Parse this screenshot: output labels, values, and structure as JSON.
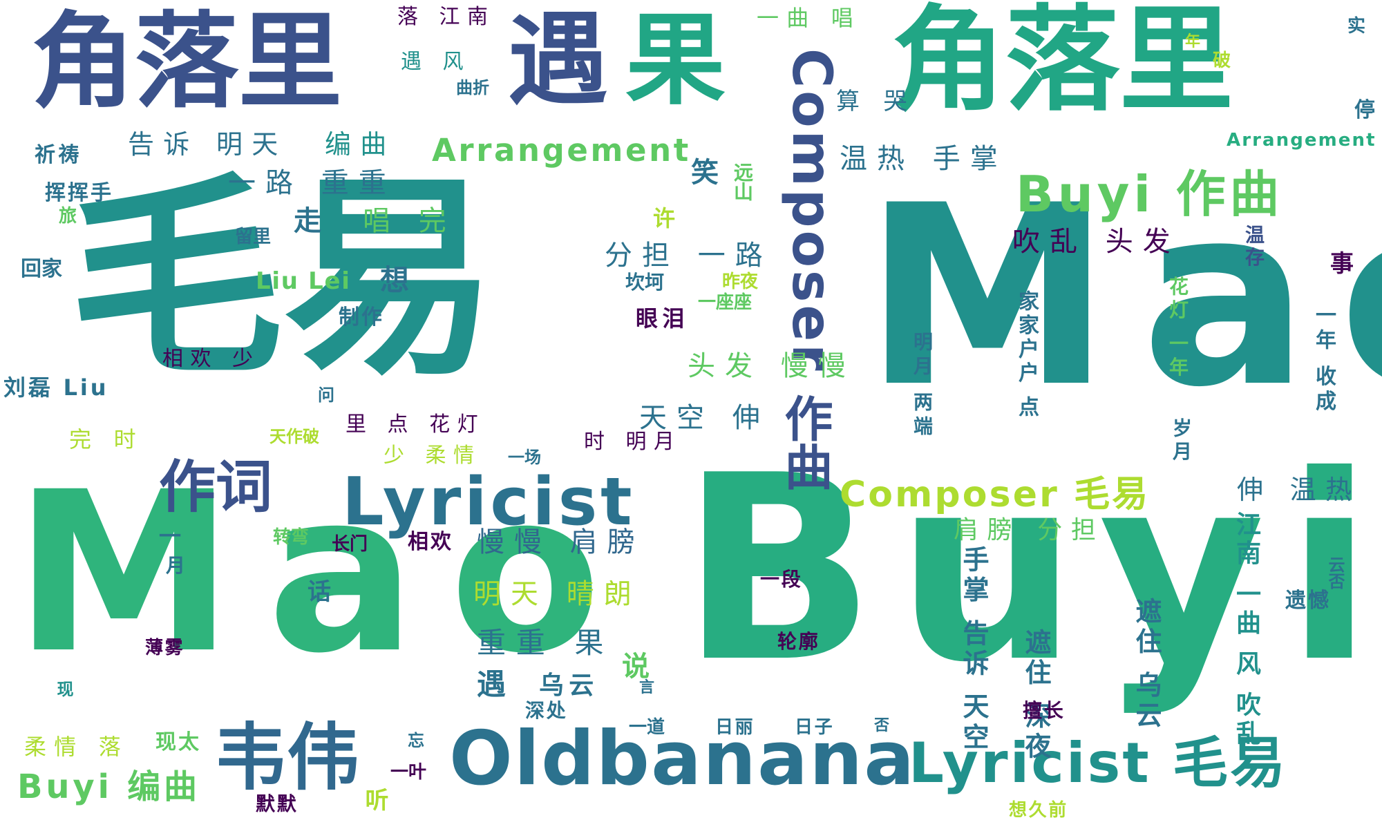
{
  "palette": {
    "dark_purple": "#440154",
    "indigo": "#3b528b",
    "blue": "#2c728e",
    "teal": "#21918c",
    "green": "#27ad81",
    "bright_green": "#5ec962",
    "lime": "#addc30",
    "yellow": "#fde725"
  },
  "words": [
    {
      "text": "毛易"
    },
    {
      "text": "Mao"
    },
    {
      "text": "Mao"
    },
    {
      "text": "Buyi"
    },
    {
      "text": "角落里"
    },
    {
      "text": "角落里"
    },
    {
      "text": "遇"
    },
    {
      "text": "果"
    },
    {
      "text": "Oldbanana"
    },
    {
      "text": "Lyricist 毛易"
    },
    {
      "text": "韦伟"
    },
    {
      "text": "作词"
    },
    {
      "text": "Lyricist"
    },
    {
      "text": "作曲"
    },
    {
      "text": "Composer"
    },
    {
      "text": "Buyi 作曲"
    },
    {
      "text": "Composer 毛易"
    },
    {
      "text": "Arrangement"
    },
    {
      "text": "Arrangement"
    },
    {
      "text": "告诉 明天"
    },
    {
      "text": "编曲"
    },
    {
      "text": "一路 重重"
    },
    {
      "text": "走"
    },
    {
      "text": "唱 完"
    },
    {
      "text": "Liu Lei"
    },
    {
      "text": "想"
    },
    {
      "text": "分担 一路"
    },
    {
      "text": "头发 慢慢"
    },
    {
      "text": "天空 伸"
    },
    {
      "text": "慢慢 肩膀"
    },
    {
      "text": "明天 晴朗"
    },
    {
      "text": "重重 果"
    },
    {
      "text": "遇"
    },
    {
      "text": "乌云"
    },
    {
      "text": "说"
    },
    {
      "text": "吹乱 头发"
    },
    {
      "text": "温热 手掌"
    },
    {
      "text": "算 哭"
    },
    {
      "text": "笑"
    },
    {
      "text": "远山"
    },
    {
      "text": "许"
    },
    {
      "text": "坎坷"
    },
    {
      "text": "昨夜"
    },
    {
      "text": "一座座"
    },
    {
      "text": "眼泪"
    },
    {
      "text": "一曲 唱"
    },
    {
      "text": "落 江南"
    },
    {
      "text": "遇 风"
    },
    {
      "text": "曲折"
    },
    {
      "text": "祈祷"
    },
    {
      "text": "挥挥手"
    },
    {
      "text": "旅"
    },
    {
      "text": "回家"
    },
    {
      "text": "留里"
    },
    {
      "text": "制作"
    },
    {
      "text": "相欢 少"
    },
    {
      "text": "刘磊 Liu"
    },
    {
      "text": "完 时"
    },
    {
      "text": "问"
    },
    {
      "text": "天作破"
    },
    {
      "text": "里 点 花灯"
    },
    {
      "text": "时 明月"
    },
    {
      "text": "少 柔情"
    },
    {
      "text": "一场"
    },
    {
      "text": "一"
    },
    {
      "text": "转弯"
    },
    {
      "text": "长门"
    },
    {
      "text": "相欢"
    },
    {
      "text": "月"
    },
    {
      "text": "话"
    },
    {
      "text": "一段"
    },
    {
      "text": "薄雾"
    },
    {
      "text": "轮廓"
    },
    {
      "text": "言"
    },
    {
      "text": "深处"
    },
    {
      "text": "一道"
    },
    {
      "text": "日丽"
    },
    {
      "text": "日子"
    },
    {
      "text": "否"
    },
    {
      "text": "忘"
    },
    {
      "text": "一叶"
    },
    {
      "text": "柔情 落"
    },
    {
      "text": "现太"
    },
    {
      "text": "Buyi 编曲"
    },
    {
      "text": "默默"
    },
    {
      "text": "听"
    },
    {
      "text": "现"
    },
    {
      "text": "明月 两端"
    },
    {
      "text": "家家户户 点"
    },
    {
      "text": "花灯 一年"
    },
    {
      "text": "岁月"
    },
    {
      "text": "一年 收成"
    },
    {
      "text": "肩膀 分担"
    },
    {
      "text": "伸 温热"
    },
    {
      "text": "江南 一曲 风 吹乱"
    },
    {
      "text": "手掌 告诉 天空"
    },
    {
      "text": "遮住 深夜"
    },
    {
      "text": "遮住 乌云"
    },
    {
      "text": "擅长"
    },
    {
      "text": "想久前"
    },
    {
      "text": "遗憾"
    },
    {
      "text": "云否"
    },
    {
      "text": "温存"
    },
    {
      "text": "事"
    },
    {
      "text": "停"
    },
    {
      "text": "实"
    },
    {
      "text": "破"
    },
    {
      "text": "年"
    }
  ]
}
